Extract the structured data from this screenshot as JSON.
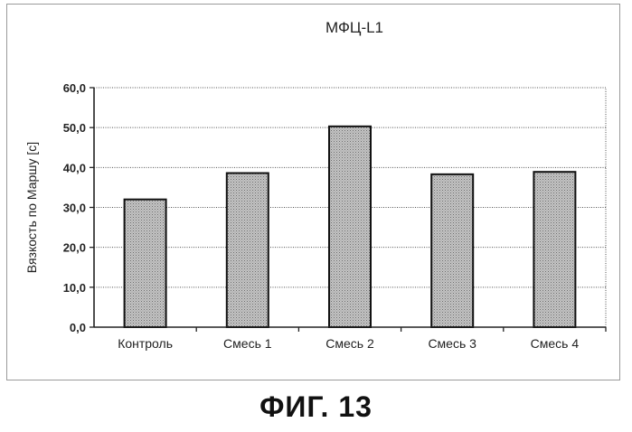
{
  "chart_data": {
    "type": "bar",
    "title": "МФЦ-L1",
    "xlabel": "",
    "ylabel": "Вязкость по Маршу [с]",
    "categories": [
      "Контроль",
      "Смесь 1",
      "Смесь 2",
      "Смесь 3",
      "Смесь 4"
    ],
    "values": [
      32.0,
      38.6,
      50.3,
      38.3,
      38.9
    ],
    "ylim": [
      0,
      60
    ],
    "yticks": [
      "0,0",
      "10,0",
      "20,0",
      "30,0",
      "40,0",
      "50,0",
      "60,0"
    ],
    "grid": true,
    "bar_fill": "#b5b5b5"
  },
  "caption": "ФИГ. 13"
}
